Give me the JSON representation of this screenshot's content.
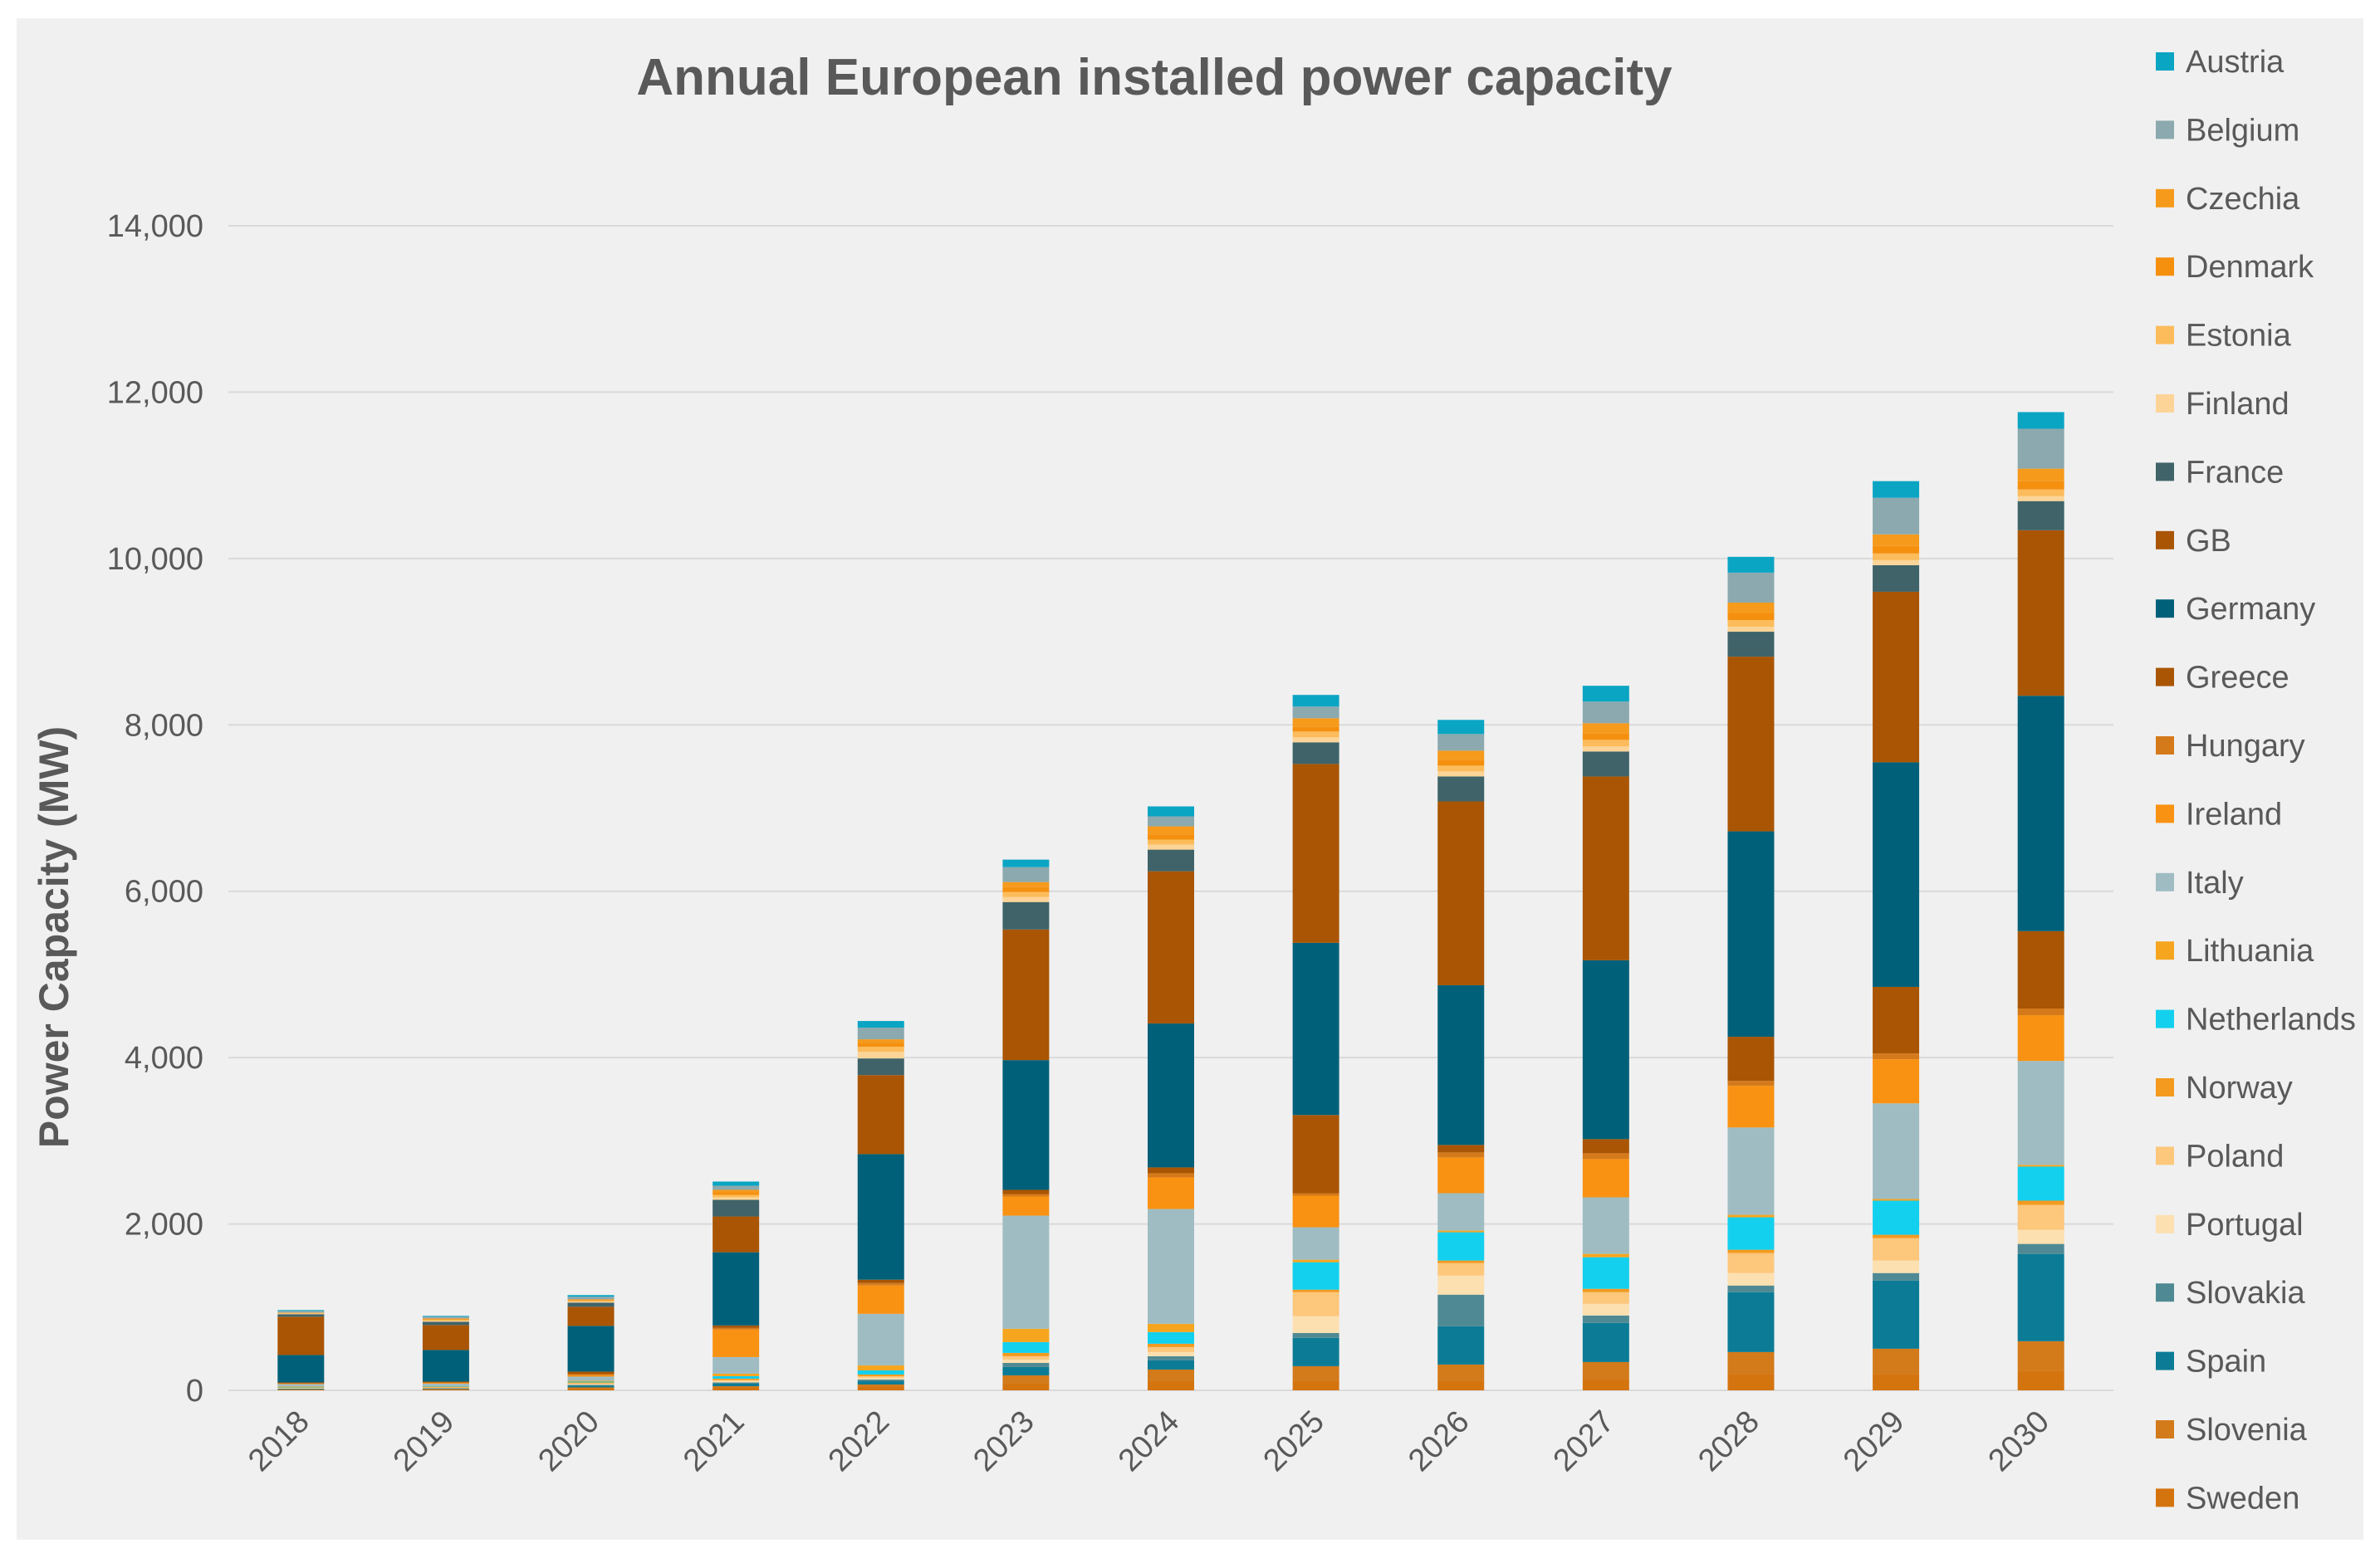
{
  "chart_data": {
    "type": "bar",
    "stacked": true,
    "title": "Annual European installed power capacity",
    "xlabel": "",
    "ylabel": "Power Capacity (MW)",
    "ylim": [
      0,
      14000
    ],
    "yticks": [
      0,
      2000,
      4000,
      6000,
      8000,
      10000,
      12000,
      14000
    ],
    "ytick_labels": [
      "0",
      "2,000",
      "4,000",
      "6,000",
      "8,000",
      "10,000",
      "12,000",
      "14,000"
    ],
    "grid": true,
    "legend_position": "right",
    "categories": [
      "2018",
      "2019",
      "2020",
      "2021",
      "2022",
      "2023",
      "2024",
      "2025",
      "2026",
      "2027",
      "2028",
      "2029",
      "2030"
    ],
    "series": [
      {
        "name": "Sweden",
        "color": "#D4740F",
        "values": [
          5,
          10,
          20,
          30,
          40,
          80,
          110,
          110,
          110,
          130,
          190,
          190,
          230
        ]
      },
      {
        "name": "Slovenia",
        "color": "#D37A1A",
        "values": [
          5,
          5,
          15,
          20,
          30,
          100,
          140,
          180,
          200,
          210,
          270,
          310,
          360
        ]
      },
      {
        "name": "Spain",
        "color": "#0C7C96",
        "values": [
          5,
          5,
          20,
          30,
          40,
          100,
          110,
          340,
          460,
          470,
          720,
          820,
          1050
        ]
      },
      {
        "name": "Slovakia",
        "color": "#4F8A94",
        "values": [
          5,
          5,
          10,
          15,
          20,
          50,
          50,
          60,
          380,
          90,
          80,
          90,
          120
        ]
      },
      {
        "name": "Portugal",
        "color": "#FDE0B0",
        "values": [
          5,
          5,
          10,
          15,
          20,
          40,
          50,
          200,
          230,
          140,
          150,
          150,
          170
        ]
      },
      {
        "name": "Poland",
        "color": "#FDC77C",
        "values": [
          5,
          5,
          10,
          15,
          20,
          40,
          60,
          290,
          150,
          140,
          240,
          270,
          300
        ]
      },
      {
        "name": "Norway",
        "color": "#F39A1F",
        "values": [
          5,
          5,
          10,
          15,
          20,
          40,
          40,
          30,
          30,
          40,
          40,
          40,
          50
        ]
      },
      {
        "name": "Netherlands",
        "color": "#13D0EE",
        "values": [
          5,
          5,
          10,
          30,
          50,
          130,
          140,
          330,
          340,
          380,
          390,
          410,
          410
        ]
      },
      {
        "name": "Lithuania",
        "color": "#F6A51F",
        "values": [
          5,
          5,
          10,
          30,
          60,
          160,
          100,
          30,
          20,
          40,
          30,
          20,
          20
        ]
      },
      {
        "name": "Italy",
        "color": "#9FBCC3",
        "values": [
          30,
          30,
          50,
          200,
          620,
          1360,
          1380,
          390,
          450,
          680,
          1050,
          1150,
          1250
        ]
      },
      {
        "name": "Ireland",
        "color": "#F99212",
        "values": [
          5,
          10,
          20,
          330,
          340,
          230,
          380,
          380,
          430,
          460,
          500,
          530,
          550
        ]
      },
      {
        "name": "Hungary",
        "color": "#D57A1B",
        "values": [
          5,
          5,
          10,
          20,
          30,
          30,
          50,
          30,
          60,
          70,
          60,
          70,
          80
        ]
      },
      {
        "name": "Greece",
        "color": "#A95503",
        "values": [
          10,
          10,
          30,
          30,
          40,
          50,
          70,
          940,
          90,
          170,
          530,
          800,
          930
        ]
      },
      {
        "name": "Germany",
        "color": "#006079",
        "values": [
          330,
          380,
          550,
          880,
          1510,
          1560,
          1730,
          2070,
          1920,
          2150,
          2470,
          2700,
          2830
        ]
      },
      {
        "name": "GB",
        "color": "#A95503",
        "values": [
          460,
          300,
          230,
          430,
          950,
          1570,
          1830,
          2150,
          2210,
          2210,
          2100,
          2050,
          1990
        ]
      },
      {
        "name": "France",
        "color": "#3F6369",
        "values": [
          30,
          40,
          50,
          200,
          200,
          330,
          260,
          260,
          300,
          300,
          300,
          320,
          350
        ]
      },
      {
        "name": "Finland",
        "color": "#FDD497",
        "values": [
          5,
          10,
          10,
          30,
          80,
          60,
          60,
          60,
          60,
          60,
          60,
          60,
          60
        ]
      },
      {
        "name": "Estonia",
        "color": "#FCBC5C",
        "values": [
          5,
          10,
          10,
          30,
          60,
          60,
          60,
          70,
          70,
          80,
          80,
          80,
          80
        ]
      },
      {
        "name": "Denmark",
        "color": "#F5900F",
        "values": [
          5,
          10,
          10,
          30,
          50,
          60,
          60,
          60,
          70,
          80,
          80,
          90,
          100
        ]
      },
      {
        "name": "Czechia",
        "color": "#F69A1B",
        "values": [
          5,
          10,
          10,
          30,
          40,
          60,
          100,
          100,
          110,
          120,
          130,
          140,
          150
        ]
      },
      {
        "name": "Belgium",
        "color": "#8BA9AE",
        "values": [
          20,
          20,
          30,
          50,
          140,
          180,
          120,
          140,
          200,
          260,
          360,
          440,
          480
        ]
      },
      {
        "name": "Austria",
        "color": "#0BA5C4",
        "values": [
          10,
          10,
          20,
          50,
          80,
          90,
          120,
          140,
          170,
          190,
          190,
          200,
          200
        ]
      }
    ]
  }
}
